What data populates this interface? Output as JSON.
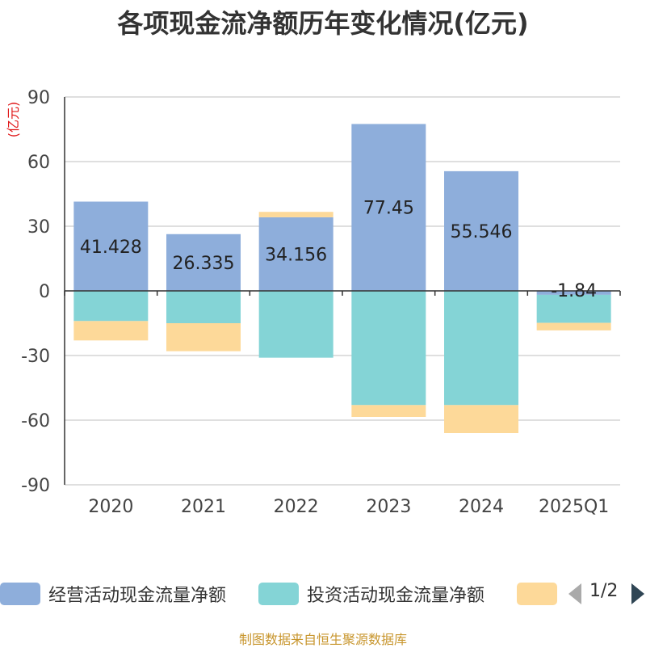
{
  "title": "各项现金流净额历年变化情况(亿元)",
  "source": "制图数据来自恒生聚源数据库",
  "legend": {
    "items": [
      {
        "label": "经营活动现金流量净额",
        "color": "#8eaedb"
      },
      {
        "label": "投资活动现金流量净额",
        "color": "#84d4d6"
      },
      {
        "label": "",
        "color": "#fdd999"
      }
    ],
    "page_text": "1/2"
  },
  "chart_data": {
    "type": "bar",
    "stacked": true,
    "title": "各项现金流净额历年变化情况(亿元)",
    "ylabel": "(亿元)",
    "ylim": [
      -90,
      90
    ],
    "yticks": [
      90,
      60,
      30,
      0,
      -30,
      -60,
      -90
    ],
    "grid": true,
    "categories": [
      "2020",
      "2021",
      "2022",
      "2023",
      "2024",
      "2025Q1"
    ],
    "series": [
      {
        "name": "经营活动现金流量净额",
        "color": "#8eaedb",
        "values": [
          41.428,
          26.335,
          34.156,
          77.45,
          55.546,
          -1.84
        ]
      },
      {
        "name": "投资活动现金流量净额",
        "color": "#84d4d6",
        "values": [
          -14,
          -15,
          -31,
          -53,
          -53,
          -13
        ]
      },
      {
        "color": "#fdd999",
        "values": [
          -9,
          -13,
          2.5,
          -5.5,
          -13,
          -3.5
        ]
      }
    ],
    "data_labels": [
      "41.428",
      "26.335",
      "34.156",
      "77.45",
      "55.546",
      "-1.84"
    ],
    "legend_position": "bottom"
  }
}
